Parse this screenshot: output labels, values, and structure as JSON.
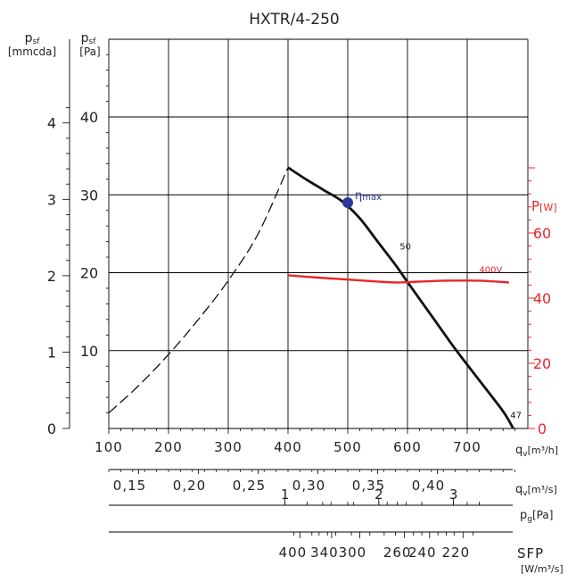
{
  "colors": {
    "curve": "#111111",
    "power": "#e8262b",
    "max_point": "#2a3a9c",
    "grid": "#000000"
  },
  "chart_data": {
    "type": "line",
    "title": "HXTR/4-250",
    "x_axis": {
      "label_main": "q",
      "label_sub": "v",
      "label_unit": "[m³/h]",
      "min": 100,
      "max": 800,
      "ticks": [
        "100",
        "200",
        "300",
        "400",
        "500",
        "600",
        "700"
      ],
      "tick_values": [
        100,
        200,
        300,
        400,
        500,
        600,
        700
      ]
    },
    "y_axis_pa": {
      "label_main": "p",
      "label_sub": "sf",
      "label_unit": "[Pa]",
      "min": 0,
      "max": 50,
      "ticks": [
        "10",
        "20",
        "30",
        "40"
      ],
      "tick_values": [
        10,
        20,
        30,
        40
      ]
    },
    "y_axis_mmcda": {
      "label_main": "p",
      "label_sub": "sf",
      "label_unit": "[mmcda]",
      "ticks": [
        "0",
        "1",
        "2",
        "3",
        "4"
      ],
      "tick_values": [
        0,
        1,
        2,
        3,
        4
      ]
    },
    "y_axis_power": {
      "label_main": "P",
      "label_unit": "[W]",
      "min": 0,
      "max": 80,
      "ticks": [
        "0",
        "20",
        "40",
        "60"
      ],
      "tick_values": [
        0,
        20,
        40,
        60
      ]
    },
    "series": [
      {
        "id": "unstable",
        "style": "dashed",
        "points": [
          [
            100,
            2
          ],
          [
            150,
            5.5
          ],
          [
            200,
            9.5
          ],
          [
            250,
            14
          ],
          [
            300,
            19
          ],
          [
            350,
            25
          ],
          [
            400,
            33.5
          ]
        ]
      },
      {
        "id": "fan_curve",
        "style": "solid",
        "points": [
          [
            400,
            33.5
          ],
          [
            430,
            32
          ],
          [
            460,
            30.6
          ],
          [
            490,
            29.2
          ],
          [
            520,
            27
          ],
          [
            550,
            24
          ],
          [
            580,
            21
          ],
          [
            600,
            18.8
          ],
          [
            640,
            14.5
          ],
          [
            680,
            10.2
          ],
          [
            720,
            6.2
          ],
          [
            760,
            2.2
          ],
          [
            777,
            0
          ]
        ]
      },
      {
        "id": "power_400V",
        "style": "solid",
        "axis": "power",
        "points": [
          [
            400,
            47
          ],
          [
            450,
            46.3
          ],
          [
            500,
            45.7
          ],
          [
            550,
            45.1
          ],
          [
            580,
            44.8
          ],
          [
            600,
            44.9
          ],
          [
            650,
            45.3
          ],
          [
            700,
            45.4
          ],
          [
            730,
            45.3
          ],
          [
            770,
            44.8
          ]
        ]
      }
    ],
    "max_efficiency_point": {
      "x": 500,
      "y": 29,
      "label": "η",
      "label_sub": "max"
    },
    "annotations": [
      {
        "text": "50",
        "x": 587,
        "y": 23
      },
      {
        "text": "400V",
        "x": 720,
        "y": 20
      },
      {
        "text": "47",
        "x": 772,
        "y": 1.3
      }
    ],
    "secondary_scales": [
      {
        "label_main": "q",
        "label_sub": "v",
        "label_unit": "[m³/s]",
        "ticks": [
          {
            "text": "0,15",
            "x": 150
          },
          {
            "text": "0,20",
            "x": 250
          },
          {
            "text": "0,25",
            "x": 350
          },
          {
            "text": "0,30",
            "x": 450
          },
          {
            "text": "0,35",
            "x": 550
          },
          {
            "text": "0,40",
            "x": 650
          }
        ]
      },
      {
        "label_main": "p",
        "label_sub": "g",
        "label_unit": "[Pa]",
        "ticks": [
          {
            "text": "1",
            "x": 395
          },
          {
            "text": "2",
            "x": 552
          },
          {
            "text": "3",
            "x": 677
          }
        ],
        "minor": [
          395,
          432,
          458,
          472,
          500,
          510,
          552,
          566,
          583,
          598,
          624,
          677,
          700,
          720
        ]
      },
      {
        "label_main": "SFP",
        "label_unit": "[W/m³/s]",
        "ticks": [
          {
            "text": "400",
            "x": 420
          },
          {
            "text": "340",
            "x": 473
          },
          {
            "text": "300",
            "x": 520
          },
          {
            "text": "260",
            "x": 595
          },
          {
            "text": "240",
            "x": 637
          },
          {
            "text": "220",
            "x": 693
          }
        ],
        "minor": [
          410,
          440,
          452,
          466,
          480,
          506,
          537,
          561,
          580,
          610,
          624,
          651,
          665,
          678,
          710
        ]
      }
    ]
  }
}
